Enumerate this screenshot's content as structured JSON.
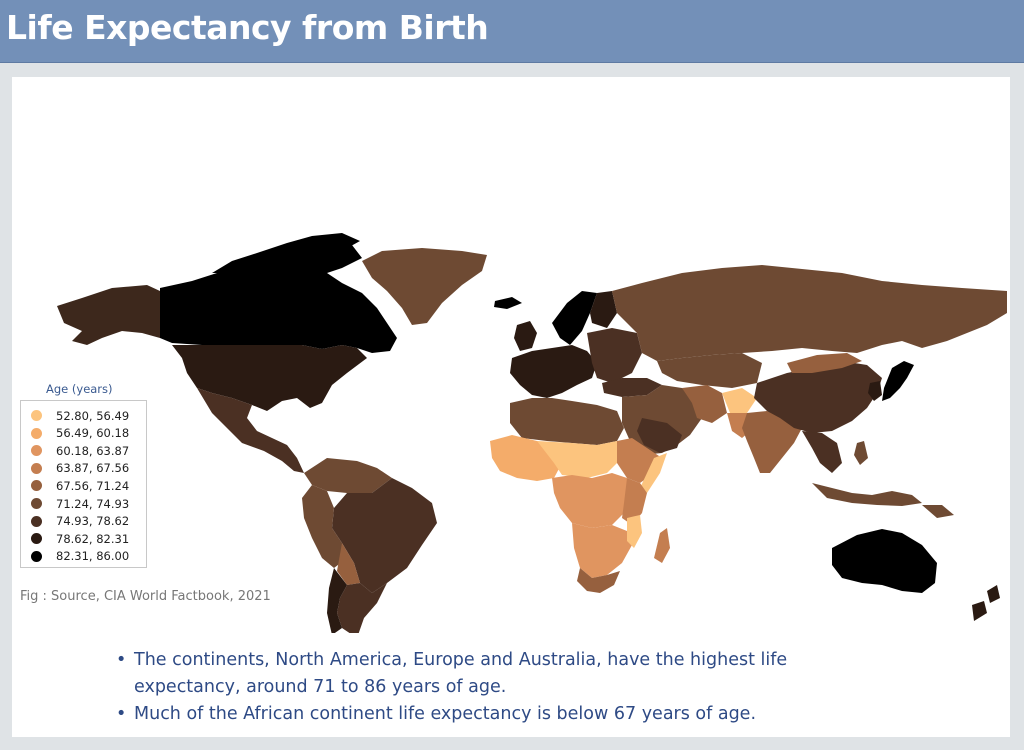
{
  "header": {
    "title": "Life Expectancy from Birth"
  },
  "legend": {
    "title": "Age (years)",
    "items": [
      {
        "label": "52.80, 56.49",
        "color": "#fcc47e"
      },
      {
        "label": "56.49, 60.18",
        "color": "#f4ac6a"
      },
      {
        "label": "60.18, 63.87",
        "color": "#e09560"
      },
      {
        "label": "63.87, 67.56",
        "color": "#c47e50"
      },
      {
        "label": "67.56, 71.24",
        "color": "#96603e"
      },
      {
        "label": "71.24, 74.93",
        "color": "#6e4a33"
      },
      {
        "label": "74.93, 78.62",
        "color": "#4b3023"
      },
      {
        "label": "78.62, 82.31",
        "color": "#2a1a12"
      },
      {
        "label": "82.31, 86.00",
        "color": "#000000"
      }
    ]
  },
  "caption": "Fig : Source, CIA World Factbook, 2021",
  "notes": [
    "The continents, North America, Europe and Australia, have the highest life expectancy, around 71 to 86 years of age.",
    "Much of the African continent life expectancy is below 67 years of age."
  ]
}
